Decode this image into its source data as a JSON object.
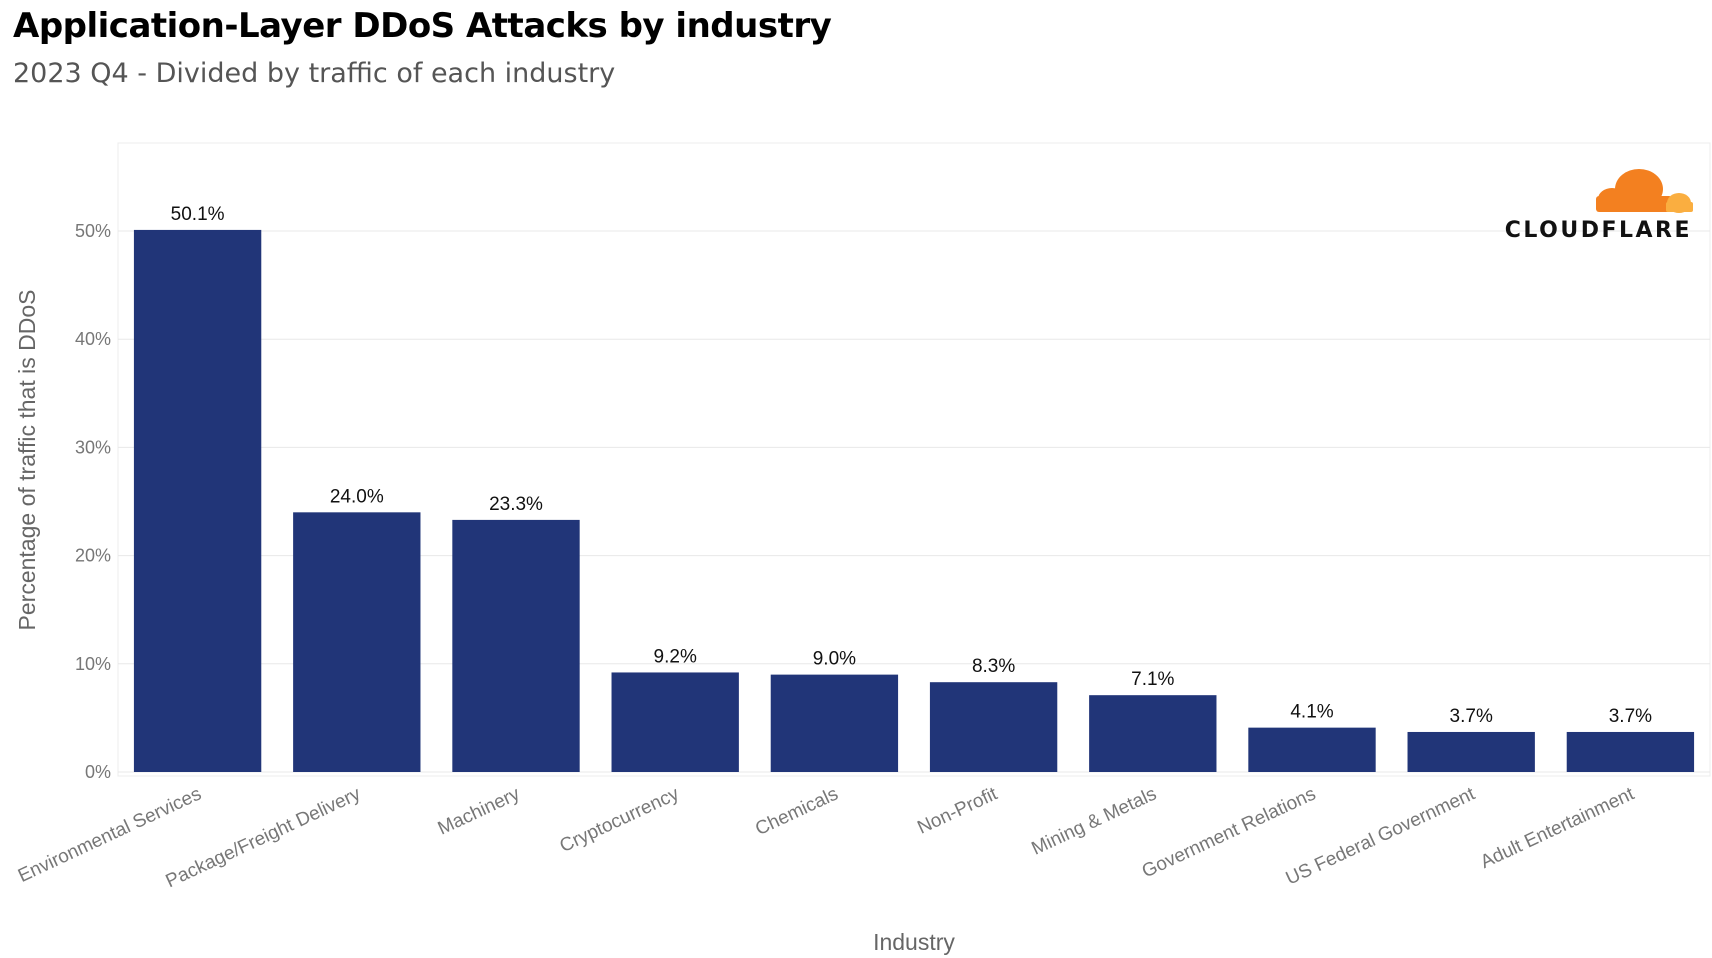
{
  "title": "Application-Layer DDoS Attacks by industry",
  "subtitle": "2023 Q4 - Divided by traffic of each industry",
  "logo": {
    "text": "CLOUDFLARE",
    "colors": [
      "#f38020",
      "#faae40"
    ]
  },
  "chart_data": {
    "type": "bar",
    "xlabel": "Industry",
    "ylabel": "Percentage of traffic that is DDoS",
    "categories": [
      "Environmental Services",
      "Package/Freight Delivery",
      "Machinery",
      "Cryptocurrency",
      "Chemicals",
      "Non-Profit",
      "Mining & Metals",
      "Government Relations",
      "US Federal Government",
      "Adult Entertainment"
    ],
    "values": [
      50.1,
      24.0,
      23.3,
      9.2,
      9.0,
      8.3,
      7.1,
      4.1,
      3.7,
      3.7
    ],
    "value_labels": [
      "50.1%",
      "24.0%",
      "23.3%",
      "9.2%",
      "9.0%",
      "8.3%",
      "7.1%",
      "4.1%",
      "3.7%",
      "3.7%"
    ],
    "yticks": [
      0,
      10,
      20,
      30,
      40,
      50
    ],
    "ytick_labels": [
      "0%",
      "10%",
      "20%",
      "30%",
      "40%",
      "50%"
    ],
    "ylim": [
      0,
      58
    ],
    "bar_color": "#213578",
    "grid": true
  }
}
